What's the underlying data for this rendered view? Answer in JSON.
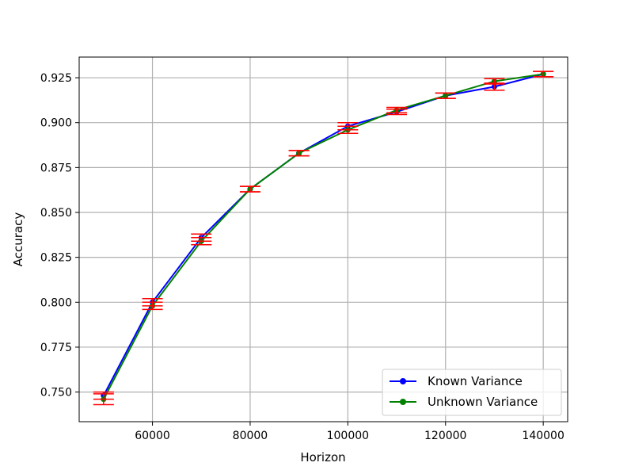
{
  "chart_data": {
    "type": "line",
    "title": "",
    "xlabel": "Horizon",
    "ylabel": "Accuracy",
    "xlim": [
      45000,
      145000
    ],
    "ylim": [
      0.7335,
      0.9365
    ],
    "xticks": [
      60000,
      80000,
      100000,
      120000,
      140000
    ],
    "xtick_labels": [
      "60000",
      "80000",
      "100000",
      "120000",
      "140000"
    ],
    "yticks": [
      0.75,
      0.775,
      0.8,
      0.825,
      0.85,
      0.875,
      0.9,
      0.925
    ],
    "ytick_labels": [
      "0.750",
      "0.775",
      "0.800",
      "0.825",
      "0.850",
      "0.875",
      "0.900",
      "0.925"
    ],
    "grid": true,
    "legend_position": "lower-right",
    "x": [
      50000,
      60000,
      70000,
      80000,
      90000,
      100000,
      110000,
      120000,
      130000,
      140000
    ],
    "series": [
      {
        "name": "Known Variance",
        "color": "#0000ff",
        "marker": "circle",
        "values": [
          0.748,
          0.8,
          0.836,
          0.863,
          0.883,
          0.898,
          0.906,
          0.915,
          0.92,
          0.927
        ],
        "errors": [
          0.002,
          0.002,
          0.002,
          0.0015,
          0.0015,
          0.002,
          0.0015,
          0.0015,
          0.002,
          0.0015
        ]
      },
      {
        "name": "Unknown Variance",
        "color": "#008000",
        "marker": "circle",
        "values": [
          0.746,
          0.798,
          0.834,
          0.863,
          0.883,
          0.896,
          0.907,
          0.915,
          0.923,
          0.927
        ],
        "errors": [
          0.003,
          0.002,
          0.002,
          0.0015,
          0.0015,
          0.002,
          0.0015,
          0.0015,
          0.0015,
          0.0015
        ]
      }
    ],
    "error_bar_color": "#ff0000"
  }
}
